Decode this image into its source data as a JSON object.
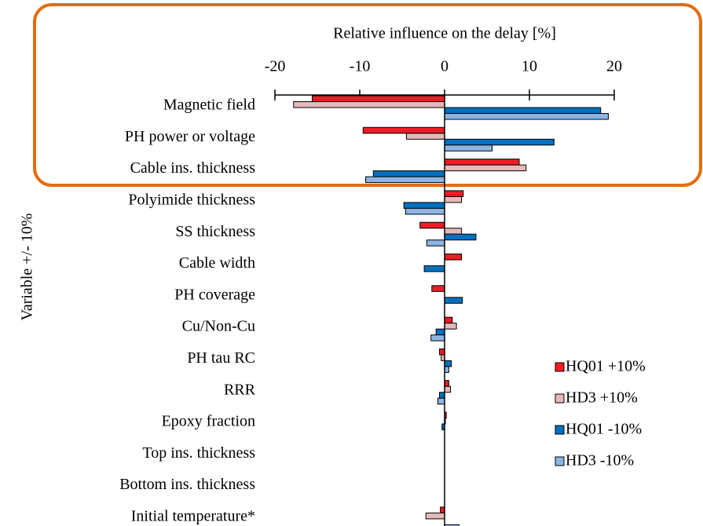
{
  "chart_data": {
    "type": "hbar",
    "title": "Relative influence on the delay [%]",
    "ylabel": "Variable +/- 10%",
    "categories": [
      "Magnetic field",
      "PH power or voltage",
      "Cable ins. thickness",
      "Polyimide thickness",
      "SS thickness",
      "Cable width",
      "PH coverage",
      "Cu/Non-Cu",
      "PH tau RC",
      "RRR",
      "Epoxy fraction",
      "Top ins. thickness",
      "Bottom ins. thickness",
      "Initial temperature*"
    ],
    "series": [
      {
        "name": "HQ01 +10%",
        "color": "#ee1c25",
        "values": [
          -15.6,
          -9.6,
          8.8,
          2.2,
          -2.9,
          2.0,
          -1.5,
          0.9,
          -0.6,
          0.5,
          0.2,
          0,
          0,
          -0.5
        ]
      },
      {
        "name": "HD3 +10%",
        "color": "#e6b9b8",
        "values": [
          -17.8,
          -4.5,
          9.6,
          2.0,
          2.0,
          0,
          0,
          1.4,
          -0.4,
          0.7,
          0.1,
          0,
          0,
          -2.2
        ]
      },
      {
        "name": "HQ01 -10%",
        "color": "#0070c0",
        "values": [
          18.4,
          12.9,
          -8.4,
          -4.8,
          3.7,
          -2.4,
          2.1,
          -1.0,
          0.8,
          -0.6,
          -0.3,
          0,
          0,
          0
        ]
      },
      {
        "name": "HD3 -10%",
        "color": "#8eb4e3",
        "values": [
          19.3,
          5.6,
          -9.3,
          -4.6,
          -2.1,
          0,
          0,
          -1.6,
          0.5,
          -0.8,
          0,
          0,
          0,
          1.7
        ]
      }
    ],
    "xlim": [
      -20,
      20
    ],
    "xticks": [
      -20,
      -10,
      0,
      10,
      20
    ]
  }
}
